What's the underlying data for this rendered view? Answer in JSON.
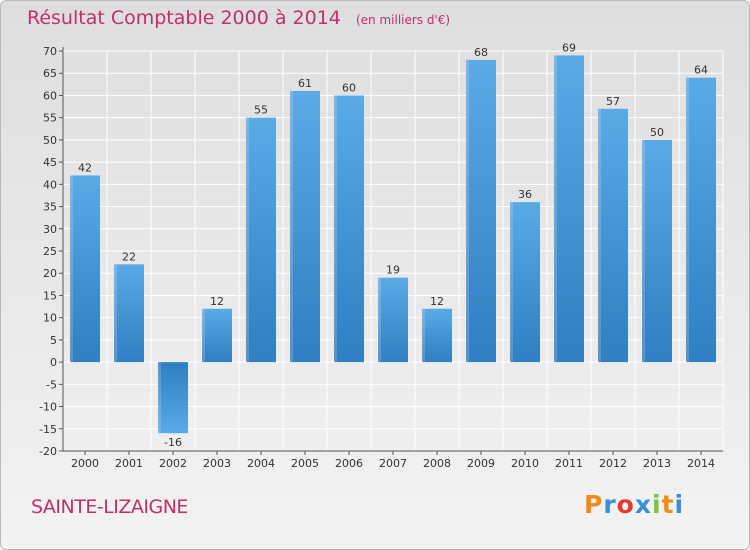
{
  "chart_data": {
    "type": "bar",
    "title": "Résultat Comptable 2000 à 2014",
    "unit": "(en milliers d'€)",
    "categories": [
      "2000",
      "2001",
      "2002",
      "2003",
      "2004",
      "2005",
      "2006",
      "2007",
      "2008",
      "2009",
      "2010",
      "2011",
      "2012",
      "2013",
      "2014"
    ],
    "values": [
      42,
      22,
      -16,
      12,
      55,
      61,
      60,
      19,
      12,
      68,
      36,
      69,
      57,
      50,
      64
    ],
    "ylim": [
      -20,
      70
    ],
    "yticks": [
      70,
      65,
      60,
      55,
      50,
      45,
      40,
      35,
      30,
      25,
      20,
      15,
      10,
      5,
      0,
      -5,
      -10,
      -15,
      -20
    ],
    "grid": true,
    "xlabel": "",
    "ylabel": ""
  },
  "place_name": "SAINTE-LIZAIGNE",
  "brand": {
    "name": "Proxiti",
    "letters": [
      "P",
      "r",
      "o",
      "x",
      "i",
      "t",
      "i"
    ],
    "letter_colors": [
      "#f08a1c",
      "#3a8fd6",
      "#e53b2c",
      "#3a8fd6",
      "#7cc242",
      "#f08a1c",
      "#3a8fd6"
    ]
  },
  "colors": {
    "bar_light": "#5aaae6",
    "bar_dark": "#2f7fc1",
    "title": "#c0306a",
    "grid": "#ffffff"
  }
}
